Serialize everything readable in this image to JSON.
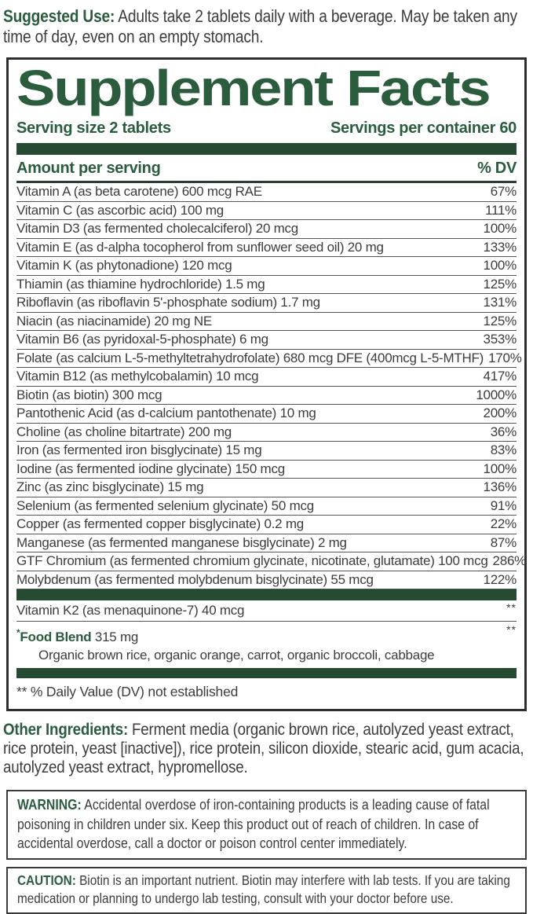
{
  "suggested_use": {
    "label": "Suggested Use:",
    "text": "Adults take 2 tablets daily with a beverage. May be taken any time of day, even on an empty stomach."
  },
  "panel": {
    "title": "Supplement Facts",
    "serving_size": "Serving size 2 tablets",
    "servings_per_container": "Servings per container 60",
    "amount_header": "Amount per serving",
    "dv_header": "% DV",
    "rows": [
      {
        "name": "Vitamin A (as beta carotene) 600 mcg RAE",
        "dv": "67%"
      },
      {
        "name": "Vitamin C (as ascorbic acid) 100 mg",
        "dv": "111%"
      },
      {
        "name": "Vitamin D3 (as fermented cholecalciferol) 20 mcg",
        "dv": "100%"
      },
      {
        "name": "Vitamin E (as d-alpha tocopherol from sunflower seed oil) 20 mg",
        "dv": "133%"
      },
      {
        "name": "Vitamin K (as phytonadione) 120 mcg",
        "dv": "100%"
      },
      {
        "name": "Thiamin (as thiamine hydrochloride) 1.5 mg",
        "dv": "125%"
      },
      {
        "name": "Riboflavin (as riboflavin 5'-phosphate sodium) 1.7 mg",
        "dv": "131%"
      },
      {
        "name": "Niacin (as niacinamide) 20 mg NE",
        "dv": "125%"
      },
      {
        "name": "Vitamin B6 (as pyridoxal-5-phosphate) 6 mg",
        "dv": "353%"
      },
      {
        "name": "Folate (as calcium L-5-methyltetrahydrofolate) 680 mcg DFE (400mcg L-5-MTHF)",
        "dv": "170%"
      },
      {
        "name": "Vitamin B12 (as methylcobalamin) 10 mcg",
        "dv": "417%"
      },
      {
        "name": "Biotin (as biotin) 300 mcg",
        "dv": "1000%"
      },
      {
        "name": "Pantothenic Acid (as d-calcium pantothenate) 10 mg",
        "dv": "200%"
      },
      {
        "name": "Choline (as choline bitartrate) 200 mg",
        "dv": "36%"
      },
      {
        "name": "Iron (as fermented iron bisglycinate) 15 mg",
        "dv": "83%"
      },
      {
        "name": "Iodine (as fermented iodine glycinate) 150 mcg",
        "dv": "100%"
      },
      {
        "name": "Zinc (as zinc bisglycinate) 15 mg",
        "dv": "136%"
      },
      {
        "name": "Selenium (as fermented selenium glycinate) 50 mcg",
        "dv": "91%"
      },
      {
        "name": "Copper (as fermented copper bisglycinate) 0.2 mg",
        "dv": "22%"
      },
      {
        "name": "Manganese (as fermented manganese bisglycinate) 2 mg",
        "dv": "87%"
      },
      {
        "name": "GTF Chromium (as fermented chromium glycinate, nicotinate, glutamate) 100 mcg",
        "dv": "286%"
      },
      {
        "name": "Molybdenum (as fermented molybdenum bisglycinate) 55 mcg",
        "dv": "122%"
      }
    ],
    "k2_row": {
      "name": "Vitamin K2 (as menaquinone-7) 40 mcg",
      "dv": "**"
    },
    "food_blend": {
      "asterisk": "*",
      "label": "Food Blend",
      "amount": " 315 mg",
      "dv": "**",
      "ingredients": "Organic brown rice, organic orange, carrot, organic broccoli, cabbage"
    },
    "footnote": "** % Daily Value (DV) not established"
  },
  "other_ingredients": {
    "label": "Other Ingredients:",
    "text": "Ferment media (organic brown rice, autolyzed yeast extract, rice protein, yeast [inactive]), rice protein, silicon dioxide, stearic acid, gum acacia, autolyzed yeast extract, hypromellose."
  },
  "warning": {
    "label": "WARNING:",
    "text": "Accidental overdose of iron-containing products is a leading cause of fatal poisoning in children under six. Keep this product out of reach of children. In case of accidental overdose, call a doctor or poison control center immediately."
  },
  "caution": {
    "label": "CAUTION:",
    "text": "Biotin is an important nutrient. Biotin may interfere with lab tests. If you are taking medication or planning to undergo lab testing, consult with your doctor before use."
  },
  "colors": {
    "brand_green": "#2b5c3e",
    "bar_green": "#254a31",
    "body_text": "#3c3c3c"
  }
}
